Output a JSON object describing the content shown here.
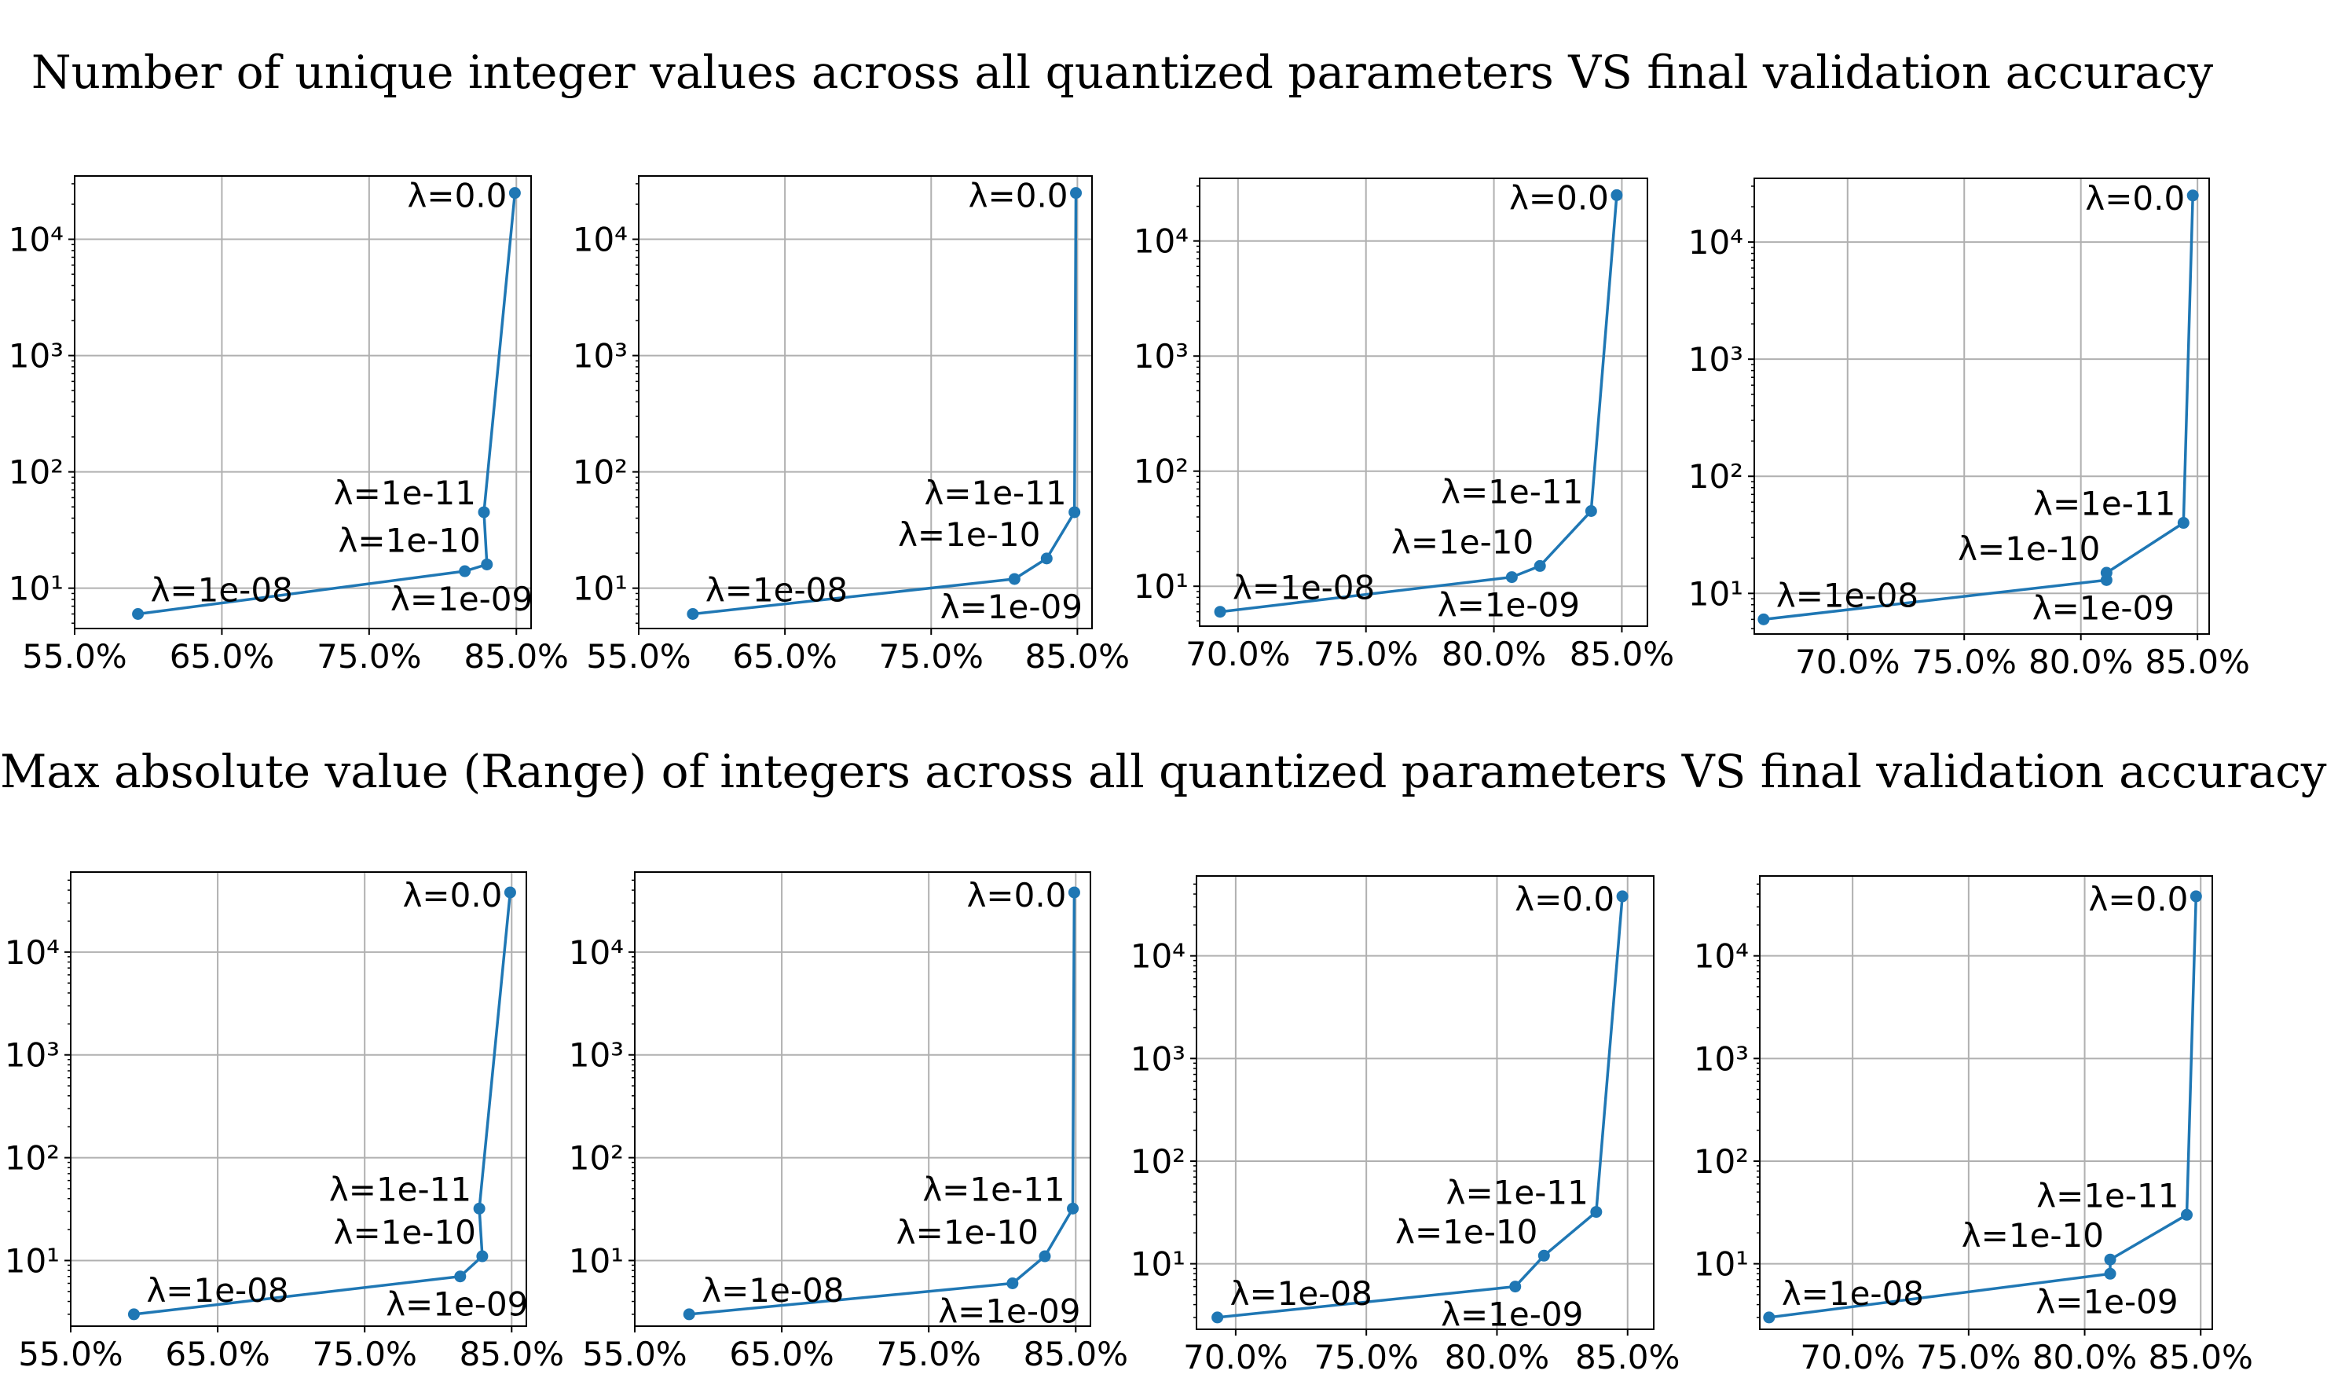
{
  "titles": {
    "row1": "Number of unique integer values across all quantized parameters VS final validation accuracy",
    "row2": "Max absolute value (Range) of integers across all quantized parameters VS final validation accuracy"
  },
  "colors": {
    "series": "#1f77b4",
    "grid": "#b0b0b0",
    "axes": "#000000"
  },
  "chart_data": [
    {
      "type": "line",
      "row": 1,
      "yscale": "log",
      "grid": true,
      "title": "",
      "xlabel": "",
      "ylabel": "",
      "xlim": [
        0.55,
        0.86
      ],
      "ylim": [
        4.5,
        35000
      ],
      "xticks": [
        0.55,
        0.65,
        0.75,
        0.85
      ],
      "xtick_labels": [
        "55.0%",
        "65.0%",
        "75.0%",
        "85.0%"
      ],
      "yticks": [
        10,
        100,
        1000,
        10000
      ],
      "ytick_labels": [
        "10¹",
        "10²",
        "10³",
        "10⁴"
      ],
      "points": [
        {
          "label": "λ=1e-08",
          "x": 0.593,
          "y": 6
        },
        {
          "label": "λ=1e-09",
          "x": 0.815,
          "y": 14
        },
        {
          "label": "λ=1e-10",
          "x": 0.83,
          "y": 16
        },
        {
          "label": "λ=1e-11",
          "x": 0.828,
          "y": 45
        },
        {
          "label": "λ=0.0",
          "x": 0.849,
          "y": 25000
        }
      ]
    },
    {
      "type": "line",
      "row": 1,
      "yscale": "log",
      "grid": true,
      "title": "",
      "xlabel": "",
      "ylabel": "",
      "xlim": [
        0.55,
        0.86
      ],
      "ylim": [
        4.5,
        35000
      ],
      "xticks": [
        0.55,
        0.65,
        0.75,
        0.85
      ],
      "xtick_labels": [
        "55.0%",
        "65.0%",
        "75.0%",
        "85.0%"
      ],
      "yticks": [
        10,
        100,
        1000,
        10000
      ],
      "ytick_labels": [
        "10¹",
        "10²",
        "10³",
        "10⁴"
      ],
      "points": [
        {
          "label": "λ=1e-08",
          "x": 0.587,
          "y": 6
        },
        {
          "label": "λ=1e-09",
          "x": 0.807,
          "y": 12
        },
        {
          "label": "λ=1e-10",
          "x": 0.829,
          "y": 18
        },
        {
          "label": "λ=1e-11",
          "x": 0.848,
          "y": 45
        },
        {
          "label": "λ=0.0",
          "x": 0.849,
          "y": 25000
        }
      ]
    },
    {
      "type": "line",
      "row": 1,
      "yscale": "log",
      "grid": true,
      "title": "",
      "xlabel": "",
      "ylabel": "",
      "xlim": [
        0.685,
        0.86
      ],
      "ylim": [
        4.5,
        35000
      ],
      "xticks": [
        0.7,
        0.75,
        0.8,
        0.85
      ],
      "xtick_labels": [
        "70.0%",
        "75.0%",
        "80.0%",
        "85.0%"
      ],
      "yticks": [
        10,
        100,
        1000,
        10000
      ],
      "ytick_labels": [
        "10¹",
        "10²",
        "10³",
        "10⁴"
      ],
      "points": [
        {
          "label": "λ=1e-08",
          "x": 0.693,
          "y": 6
        },
        {
          "label": "λ=1e-09",
          "x": 0.807,
          "y": 12
        },
        {
          "label": "λ=1e-10",
          "x": 0.818,
          "y": 15
        },
        {
          "label": "λ=1e-11",
          "x": 0.838,
          "y": 45
        },
        {
          "label": "λ=0.0",
          "x": 0.848,
          "y": 25000
        }
      ]
    },
    {
      "type": "line",
      "row": 1,
      "yscale": "log",
      "grid": true,
      "title": "",
      "xlabel": "",
      "ylabel": "",
      "xlim": [
        0.66,
        0.855
      ],
      "ylim": [
        4.5,
        35000
      ],
      "xticks": [
        0.7,
        0.75,
        0.8,
        0.85
      ],
      "xtick_labels": [
        "70.0%",
        "75.0%",
        "80.0%",
        "85.0%"
      ],
      "yticks": [
        10,
        100,
        1000,
        10000
      ],
      "ytick_labels": [
        "10¹",
        "10²",
        "10³",
        "10⁴"
      ],
      "points": [
        {
          "label": "λ=1e-08",
          "x": 0.664,
          "y": 6
        },
        {
          "label": "λ=1e-09",
          "x": 0.811,
          "y": 13
        },
        {
          "label": "λ=1e-10",
          "x": 0.811,
          "y": 15
        },
        {
          "label": "λ=1e-11",
          "x": 0.844,
          "y": 40
        },
        {
          "label": "λ=0.0",
          "x": 0.848,
          "y": 25000
        }
      ]
    },
    {
      "type": "line",
      "row": 2,
      "yscale": "log",
      "grid": true,
      "title": "",
      "xlabel": "",
      "ylabel": "",
      "xlim": [
        0.55,
        0.86
      ],
      "ylim": [
        2.3,
        60000
      ],
      "xticks": [
        0.55,
        0.65,
        0.75,
        0.85
      ],
      "xtick_labels": [
        "55.0%",
        "65.0%",
        "75.0%",
        "85.0%"
      ],
      "yticks": [
        10,
        100,
        1000,
        10000
      ],
      "ytick_labels": [
        "10¹",
        "10²",
        "10³",
        "10⁴"
      ],
      "points": [
        {
          "label": "λ=1e-08",
          "x": 0.593,
          "y": 3
        },
        {
          "label": "λ=1e-09",
          "x": 0.815,
          "y": 7
        },
        {
          "label": "λ=1e-10",
          "x": 0.83,
          "y": 11
        },
        {
          "label": "λ=1e-11",
          "x": 0.828,
          "y": 32
        },
        {
          "label": "λ=0.0",
          "x": 0.849,
          "y": 38000
        }
      ]
    },
    {
      "type": "line",
      "row": 2,
      "yscale": "log",
      "grid": true,
      "title": "",
      "xlabel": "",
      "ylabel": "",
      "xlim": [
        0.55,
        0.86
      ],
      "ylim": [
        2.3,
        60000
      ],
      "xticks": [
        0.55,
        0.65,
        0.75,
        0.85
      ],
      "xtick_labels": [
        "55.0%",
        "65.0%",
        "75.0%",
        "85.0%"
      ],
      "yticks": [
        10,
        100,
        1000,
        10000
      ],
      "ytick_labels": [
        "10¹",
        "10²",
        "10³",
        "10⁴"
      ],
      "points": [
        {
          "label": "λ=1e-08",
          "x": 0.587,
          "y": 3
        },
        {
          "label": "λ=1e-09",
          "x": 0.807,
          "y": 6
        },
        {
          "label": "λ=1e-10",
          "x": 0.829,
          "y": 11
        },
        {
          "label": "λ=1e-11",
          "x": 0.848,
          "y": 32
        },
        {
          "label": "λ=0.0",
          "x": 0.849,
          "y": 38000
        }
      ]
    },
    {
      "type": "line",
      "row": 2,
      "yscale": "log",
      "grid": true,
      "title": "",
      "xlabel": "",
      "ylabel": "",
      "xlim": [
        0.685,
        0.86
      ],
      "ylim": [
        2.3,
        60000
      ],
      "xticks": [
        0.7,
        0.75,
        0.8,
        0.85
      ],
      "xtick_labels": [
        "70.0%",
        "75.0%",
        "80.0%",
        "85.0%"
      ],
      "yticks": [
        10,
        100,
        1000,
        10000
      ],
      "ytick_labels": [
        "10¹",
        "10²",
        "10³",
        "10⁴"
      ],
      "points": [
        {
          "label": "λ=1e-08",
          "x": 0.693,
          "y": 3
        },
        {
          "label": "λ=1e-09",
          "x": 0.807,
          "y": 6
        },
        {
          "label": "λ=1e-10",
          "x": 0.818,
          "y": 12
        },
        {
          "label": "λ=1e-11",
          "x": 0.838,
          "y": 32
        },
        {
          "label": "λ=0.0",
          "x": 0.848,
          "y": 38000
        }
      ]
    },
    {
      "type": "line",
      "row": 2,
      "yscale": "log",
      "grid": true,
      "title": "",
      "xlabel": "",
      "ylabel": "",
      "xlim": [
        0.66,
        0.855
      ],
      "ylim": [
        2.3,
        60000
      ],
      "xticks": [
        0.7,
        0.75,
        0.8,
        0.85
      ],
      "xtick_labels": [
        "70.0%",
        "75.0%",
        "80.0%",
        "85.0%"
      ],
      "yticks": [
        10,
        100,
        1000,
        10000
      ],
      "ytick_labels": [
        "10¹",
        "10²",
        "10³",
        "10⁴"
      ],
      "points": [
        {
          "label": "λ=1e-08",
          "x": 0.664,
          "y": 3
        },
        {
          "label": "λ=1e-09",
          "x": 0.811,
          "y": 8
        },
        {
          "label": "λ=1e-10",
          "x": 0.811,
          "y": 11
        },
        {
          "label": "λ=1e-11",
          "x": 0.844,
          "y": 30
        },
        {
          "label": "λ=0.0",
          "x": 0.848,
          "y": 38000
        }
      ]
    }
  ]
}
